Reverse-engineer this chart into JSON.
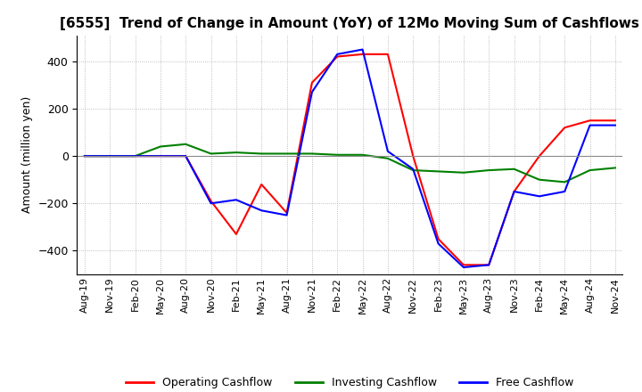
{
  "title": "[6555]  Trend of Change in Amount (YoY) of 12Mo Moving Sum of Cashflows",
  "ylabel": "Amount (million yen)",
  "legend_labels": [
    "Operating Cashflow",
    "Investing Cashflow",
    "Free Cashflow"
  ],
  "legend_colors": [
    "#ff0000",
    "#008000",
    "#0000ff"
  ],
  "x_labels": [
    "Aug-19",
    "Nov-19",
    "Feb-20",
    "May-20",
    "Aug-20",
    "Nov-20",
    "Feb-21",
    "May-21",
    "Aug-21",
    "Nov-21",
    "Feb-22",
    "May-22",
    "Aug-22",
    "Nov-22",
    "Feb-23",
    "May-23",
    "Aug-23",
    "Nov-23",
    "Feb-24",
    "May-24",
    "Aug-24",
    "Nov-24"
  ],
  "operating": [
    0,
    0,
    0,
    0,
    0,
    -190,
    -330,
    -120,
    -240,
    310,
    420,
    430,
    430,
    0,
    -350,
    -460,
    -460,
    -150,
    0,
    120,
    150,
    150
  ],
  "investing": [
    0,
    0,
    0,
    40,
    50,
    10,
    15,
    10,
    10,
    10,
    5,
    5,
    -10,
    -60,
    -65,
    -70,
    -60,
    -55,
    -100,
    -110,
    -60,
    -50
  ],
  "free": [
    0,
    0,
    0,
    0,
    0,
    -200,
    -185,
    -230,
    -250,
    270,
    430,
    450,
    20,
    -55,
    -370,
    -470,
    -460,
    -150,
    -170,
    -150,
    130,
    130
  ],
  "ylim": [
    -500,
    510
  ],
  "yticks": [
    -400,
    -200,
    0,
    200,
    400
  ],
  "background_color": "#ffffff",
  "grid_color": "#aaaaaa",
  "title_fontsize": 11,
  "axis_fontsize": 9,
  "tick_fontsize": 8
}
